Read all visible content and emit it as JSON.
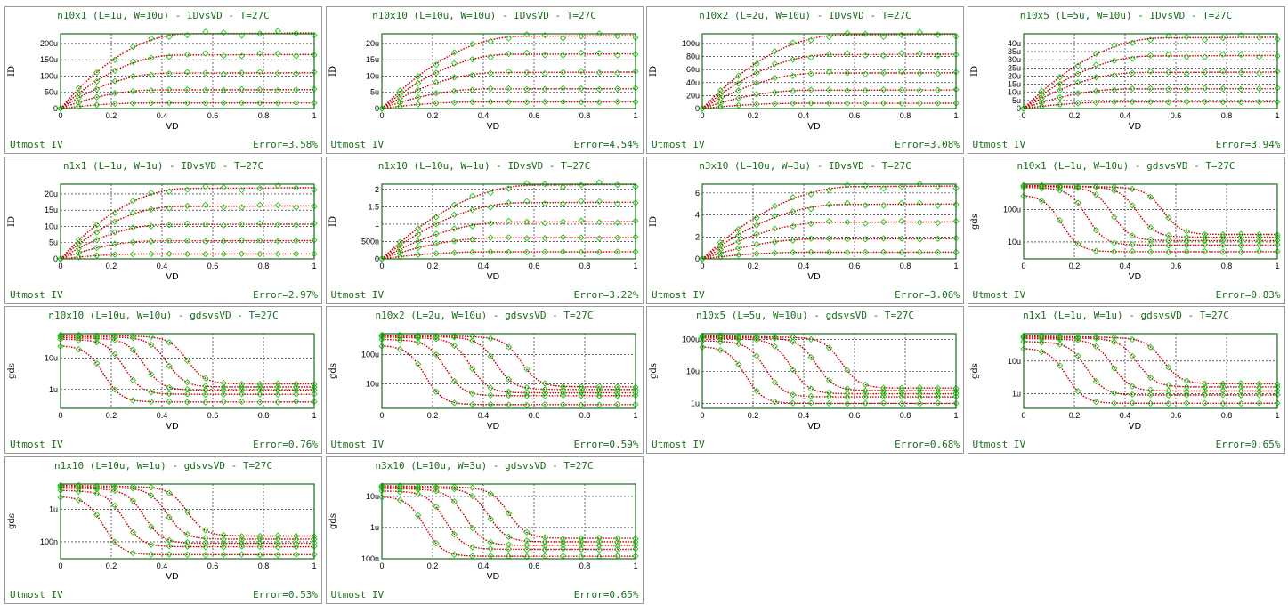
{
  "footer_left": "Utmost IV",
  "colors": {
    "measured": "#1ec81e",
    "simulated": "#cc0000",
    "text": "#1b6e1b",
    "frame": "#1b6e1b",
    "grid": "#000000"
  },
  "chart_data": [
    {
      "type": "line",
      "title": "n10x1 (L=1u, W=10u) - IDvsVD - T=27C",
      "xlabel": "VD",
      "ylabel": "ID",
      "xlim": [
        0,
        1
      ],
      "ylim": [
        0,
        230
      ],
      "yscale": "linear",
      "yticks": [
        0,
        50,
        100,
        150,
        200
      ],
      "ytick_labels": [
        "0",
        "50u",
        "100u",
        "150u",
        "200u"
      ],
      "xticks": [
        0,
        0.2,
        0.4,
        0.6,
        0.8,
        1
      ],
      "xtick_labels": [
        "0",
        "0.2",
        "0.4",
        "0.6",
        "0.8",
        "1"
      ],
      "grid": true,
      "error": "Error=3.58%",
      "curves": {
        "sat": [
          228,
          163,
          108,
          57,
          17
        ],
        "vsat": 0.5
      }
    },
    {
      "type": "line",
      "title": "n10x10 (L=10u, W=10u) - IDvsVD - T=27C",
      "xlabel": "VD",
      "ylabel": "ID",
      "xlim": [
        0,
        1
      ],
      "ylim": [
        0,
        23
      ],
      "yscale": "linear",
      "yticks": [
        0,
        5,
        10,
        15,
        20
      ],
      "ytick_labels": [
        "0",
        "5u",
        "10u",
        "15u",
        "20u"
      ],
      "xticks": [
        0,
        0.2,
        0.4,
        0.6,
        0.8,
        1
      ],
      "xtick_labels": [
        "0",
        "0.2",
        "0.4",
        "0.6",
        "0.8",
        "1"
      ],
      "grid": true,
      "error": "Error=4.54%",
      "curves": {
        "sat": [
          22,
          16.5,
          11,
          6,
          2
        ],
        "vsat": 0.55
      }
    },
    {
      "type": "line",
      "title": "n10x2 (L=2u, W=10u) - IDvsVD - T=27C",
      "xlabel": "VD",
      "ylabel": "ID",
      "xlim": [
        0,
        1
      ],
      "ylim": [
        0,
        115
      ],
      "yscale": "linear",
      "yticks": [
        0,
        20,
        40,
        60,
        80,
        100
      ],
      "ytick_labels": [
        "0",
        "20u",
        "40u",
        "60u",
        "80u",
        "100u"
      ],
      "xticks": [
        0,
        0.2,
        0.4,
        0.6,
        0.8,
        1
      ],
      "xtick_labels": [
        "0",
        "0.2",
        "0.4",
        "0.6",
        "0.8",
        "1"
      ],
      "grid": true,
      "error": "Error=3.08%",
      "curves": {
        "sat": [
          112,
          82,
          54,
          28,
          8
        ],
        "vsat": 0.55
      }
    },
    {
      "type": "line",
      "title": "n10x5 (L=5u, W=10u) - IDvsVD - T=27C",
      "xlabel": "VD",
      "ylabel": "ID",
      "xlim": [
        0,
        1
      ],
      "ylim": [
        0,
        46
      ],
      "yscale": "linear",
      "yticks": [
        0,
        5,
        10,
        15,
        20,
        25,
        30,
        35,
        40
      ],
      "ytick_labels": [
        "0",
        "5u",
        "10u",
        "15u",
        "20u",
        "25u",
        "30u",
        "35u",
        "40u"
      ],
      "xticks": [
        0,
        0.2,
        0.4,
        0.6,
        0.8,
        1
      ],
      "xtick_labels": [
        "0",
        "0.2",
        "0.4",
        "0.6",
        "0.8",
        "1"
      ],
      "grid": true,
      "error": "Error=3.94%",
      "curves": {
        "sat": [
          43,
          32,
          22,
          12,
          4
        ],
        "vsat": 0.55
      }
    },
    {
      "type": "line",
      "title": "n1x1 (L=1u, W=1u) - IDvsVD - T=27C",
      "xlabel": "VD",
      "ylabel": "ID",
      "xlim": [
        0,
        1
      ],
      "ylim": [
        0,
        23
      ],
      "yscale": "linear",
      "yticks": [
        0,
        5,
        10,
        15,
        20
      ],
      "ytick_labels": [
        "0",
        "5u",
        "10u",
        "15u",
        "20u"
      ],
      "xticks": [
        0,
        0.2,
        0.4,
        0.6,
        0.8,
        1
      ],
      "xtick_labels": [
        "0",
        "0.2",
        "0.4",
        "0.6",
        "0.8",
        "1"
      ],
      "grid": true,
      "error": "Error=2.97%",
      "curves": {
        "sat": [
          21.5,
          16,
          10.5,
          5.5,
          1.5
        ],
        "vsat": 0.5
      }
    },
    {
      "type": "line",
      "title": "n1x10 (L=10u, W=1u) - IDvsVD - T=27C",
      "xlabel": "VD",
      "ylabel": "ID",
      "xlim": [
        0,
        1
      ],
      "ylim": [
        0,
        2.15
      ],
      "yscale": "linear",
      "yticks": [
        0,
        0.5,
        1,
        1.5,
        2
      ],
      "ytick_labels": [
        "0",
        "500n",
        "1",
        "1.5",
        "2"
      ],
      "xticks": [
        0,
        0.2,
        0.4,
        0.6,
        0.8,
        1
      ],
      "xtick_labels": [
        "0",
        "0.2",
        "0.4",
        "0.6",
        "0.8",
        "1"
      ],
      "grid": true,
      "error": "Error=3.22%",
      "curves": {
        "sat": [
          2.1,
          1.6,
          1.05,
          0.6,
          0.2
        ],
        "vsat": 0.6
      }
    },
    {
      "type": "line",
      "title": "n3x10 (L=10u, W=3u) - IDvsVD - T=27C",
      "xlabel": "VD",
      "ylabel": "ID",
      "xlim": [
        0,
        1
      ],
      "ylim": [
        0,
        6.8
      ],
      "yscale": "linear",
      "yticks": [
        0,
        2,
        4,
        6
      ],
      "ytick_labels": [
        "0",
        "2",
        "4",
        "6"
      ],
      "xticks": [
        0,
        0.2,
        0.4,
        0.6,
        0.8,
        1
      ],
      "xtick_labels": [
        "0",
        "0.2",
        "0.4",
        "0.6",
        "0.8",
        "1"
      ],
      "grid": true,
      "error": "Error=3.06%",
      "curves": {
        "sat": [
          6.5,
          4.9,
          3.3,
          1.8,
          0.6
        ],
        "vsat": 0.6
      }
    },
    {
      "type": "line",
      "title": "n10x1 (L=1u, W=10u) - gdsvsVD - T=27C",
      "xlabel": "VD",
      "ylabel": "gds",
      "xlim": [
        0,
        1
      ],
      "ylim": [
        3,
        600
      ],
      "yscale": "log",
      "yticks": [
        10,
        100
      ],
      "ytick_labels": [
        "10u",
        "100u"
      ],
      "xticks": [
        0,
        0.2,
        0.4,
        0.6,
        0.8,
        1
      ],
      "xtick_labels": [
        "0",
        "0.2",
        "0.4",
        "0.6",
        "0.8",
        "1"
      ],
      "grid": true,
      "error": "Error=0.83%",
      "curves": {
        "hi": [
          550,
          540,
          520,
          480,
          280
        ],
        "lo": [
          17,
          14,
          11,
          8,
          5
        ],
        "knee": [
          0.55,
          0.45,
          0.35,
          0.25,
          0.15
        ]
      }
    },
    {
      "type": "line",
      "title": "n10x10 (L=10u, W=10u) - gdsvsVD - T=27C",
      "xlabel": "VD",
      "ylabel": "gds",
      "xlim": [
        0,
        1
      ],
      "ylim": [
        0.25,
        60
      ],
      "yscale": "log",
      "yticks": [
        1,
        10
      ],
      "ytick_labels": [
        "1u",
        "10u"
      ],
      "xticks": [
        0,
        0.2,
        0.4,
        0.6,
        0.8,
        1
      ],
      "xtick_labels": [
        "0",
        "0.2",
        "0.4",
        "0.6",
        "0.8",
        "1"
      ],
      "grid": true,
      "error": "Error=0.76%",
      "curves": {
        "hi": [
          55,
          50,
          45,
          40,
          25
        ],
        "lo": [
          1.5,
          1.2,
          0.95,
          0.7,
          0.4
        ],
        "knee": [
          0.5,
          0.42,
          0.33,
          0.25,
          0.17
        ]
      }
    },
    {
      "type": "line",
      "title": "n10x2 (L=2u, W=10u) - gdsvsVD - T=27C",
      "xlabel": "VD",
      "ylabel": "gds",
      "xlim": [
        0,
        1
      ],
      "ylim": [
        1.5,
        500
      ],
      "yscale": "log",
      "yticks": [
        10,
        100
      ],
      "ytick_labels": [
        "10u",
        "100u"
      ],
      "xticks": [
        0,
        0.2,
        0.4,
        0.6,
        0.8,
        1
      ],
      "xtick_labels": [
        "0",
        "0.2",
        "0.4",
        "0.6",
        "0.8",
        "1"
      ],
      "grid": true,
      "error": "Error=0.59%",
      "curves": {
        "hi": [
          450,
          420,
          380,
          320,
          200
        ],
        "lo": [
          8,
          6.5,
          5,
          4,
          2
        ],
        "knee": [
          0.55,
          0.45,
          0.35,
          0.25,
          0.17
        ]
      }
    },
    {
      "type": "line",
      "title": "n10x5 (L=5u, W=10u) - gdsvsVD - T=27C",
      "xlabel": "VD",
      "ylabel": "gds",
      "xlim": [
        0,
        1
      ],
      "ylim": [
        0.7,
        150
      ],
      "yscale": "log",
      "yticks": [
        1,
        10,
        100
      ],
      "ytick_labels": [
        "1u",
        "10u",
        "100u"
      ],
      "xticks": [
        0,
        0.2,
        0.4,
        0.6,
        0.8,
        1
      ],
      "xtick_labels": [
        "0",
        "0.2",
        "0.4",
        "0.6",
        "0.8",
        "1"
      ],
      "grid": true,
      "error": "Error=0.68%",
      "curves": {
        "hi": [
          130,
          120,
          110,
          90,
          60
        ],
        "lo": [
          3,
          2.5,
          2,
          1.6,
          1
        ],
        "knee": [
          0.55,
          0.45,
          0.35,
          0.25,
          0.17
        ]
      }
    },
    {
      "type": "line",
      "title": "n1x1 (L=1u, W=1u) - gdsvsVD - T=27C",
      "xlabel": "VD",
      "ylabel": "gds",
      "xlim": [
        0,
        1
      ],
      "ylim": [
        0.35,
        70
      ],
      "yscale": "log",
      "yticks": [
        1,
        10
      ],
      "ytick_labels": [
        "1u",
        "10u"
      ],
      "xticks": [
        0,
        0.2,
        0.4,
        0.6,
        0.8,
        1
      ],
      "xtick_labels": [
        "0",
        "0.2",
        "0.4",
        "0.6",
        "0.8",
        "1"
      ],
      "grid": true,
      "error": "Error=0.65%",
      "curves": {
        "hi": [
          60,
          55,
          50,
          40,
          25
        ],
        "lo": [
          2,
          1.6,
          1.2,
          0.9,
          0.5
        ],
        "knee": [
          0.55,
          0.45,
          0.35,
          0.25,
          0.17
        ]
      }
    },
    {
      "type": "line",
      "title": "n1x10 (L=10u, W=1u) - gdsvsVD - T=27C",
      "xlabel": "VD",
      "ylabel": "gds",
      "xlim": [
        0,
        1
      ],
      "ylim": [
        0.03,
        6
      ],
      "yscale": "log",
      "yticks": [
        0.1,
        1
      ],
      "ytick_labels": [
        "100n",
        "1u"
      ],
      "xticks": [
        0,
        0.2,
        0.4,
        0.6,
        0.8,
        1
      ],
      "xtick_labels": [
        "0",
        "0.2",
        "0.4",
        "0.6",
        "0.8",
        "1"
      ],
      "grid": true,
      "error": "Error=0.53%",
      "curves": {
        "hi": [
          5.5,
          5,
          4.5,
          3.8,
          2.5
        ],
        "lo": [
          0.15,
          0.12,
          0.09,
          0.07,
          0.04
        ],
        "knee": [
          0.5,
          0.42,
          0.33,
          0.25,
          0.17
        ]
      }
    },
    {
      "type": "line",
      "title": "n3x10 (L=10u, W=3u) - gdsvsVD - T=27C",
      "xlabel": "VD",
      "ylabel": "gds",
      "xlim": [
        0,
        1
      ],
      "ylim": [
        0.1,
        25
      ],
      "yscale": "log",
      "yticks": [
        0.1,
        1,
        10
      ],
      "ytick_labels": [
        "100n",
        "1u",
        "10u"
      ],
      "xticks": [
        0,
        0.2,
        0.4,
        0.6,
        0.8,
        1
      ],
      "xtick_labels": [
        "0",
        "0.2",
        "0.4",
        "0.6",
        "0.8",
        "1"
      ],
      "grid": true,
      "error": "Error=0.65%",
      "curves": {
        "hi": [
          22,
          20,
          18,
          15,
          10
        ],
        "lo": [
          0.45,
          0.35,
          0.27,
          0.2,
          0.12
        ],
        "knee": [
          0.5,
          0.42,
          0.33,
          0.25,
          0.17
        ]
      }
    }
  ]
}
